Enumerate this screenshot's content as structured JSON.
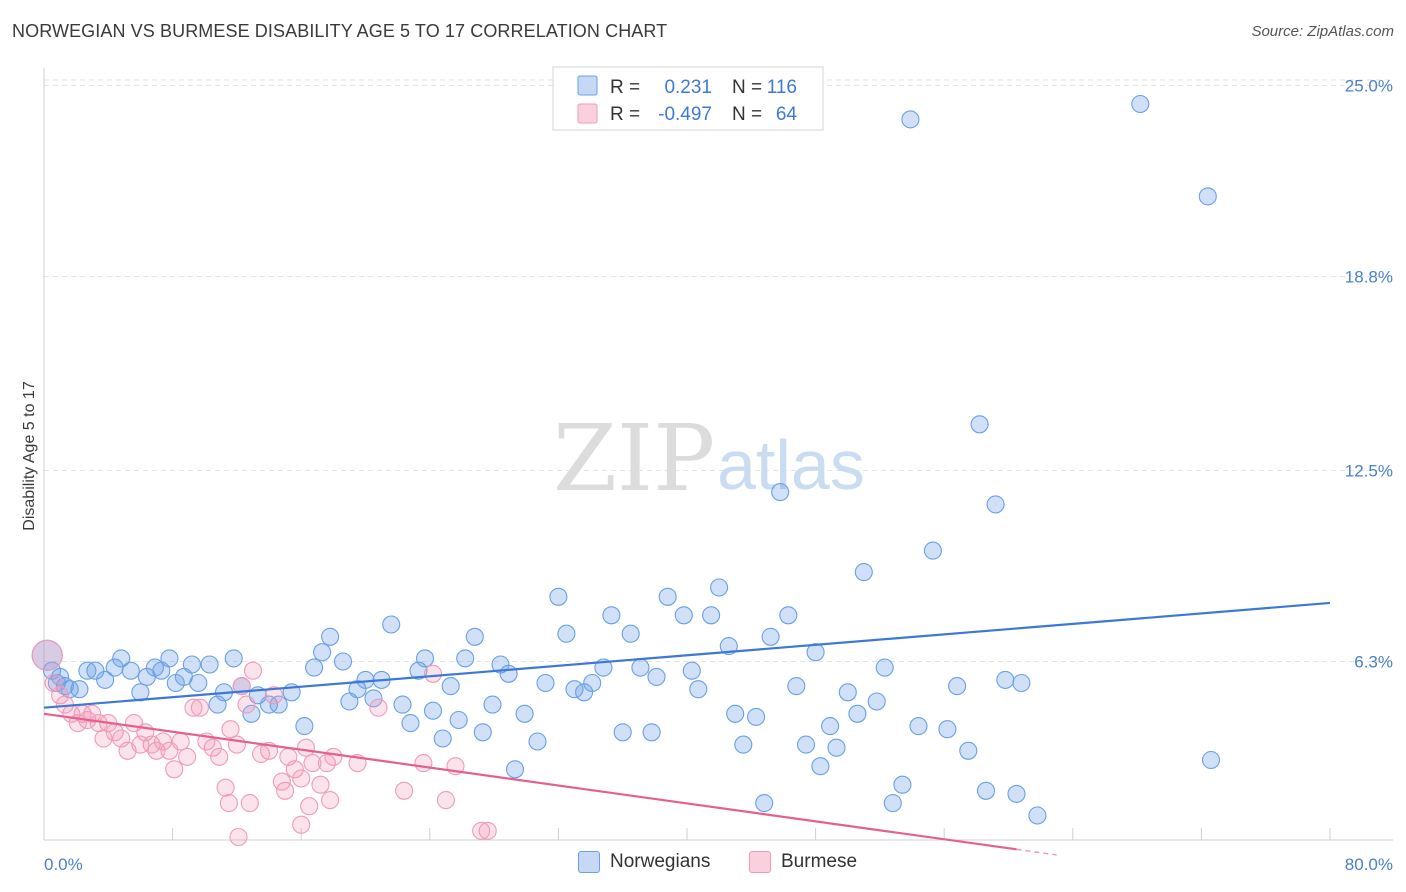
{
  "title": "NORWEGIAN VS BURMESE DISABILITY AGE 5 TO 17 CORRELATION CHART",
  "source": "Source: ZipAtlas.com",
  "watermark": {
    "part1": "ZIP",
    "part2": "atlas"
  },
  "chart_data": {
    "type": "scatter",
    "title": "NORWEGIAN VS BURMESE DISABILITY AGE 5 TO 17 CORRELATION CHART",
    "xlabel": "",
    "ylabel": "Disability Age 5 to 17",
    "xlim": [
      0,
      80
    ],
    "ylim": [
      0,
      26
    ],
    "x_tick_labels": [
      "0.0%",
      "80.0%"
    ],
    "y_ticks": [
      6.3,
      12.5,
      18.8,
      25.0
    ],
    "y_tick_labels": [
      "6.3%",
      "12.5%",
      "18.8%",
      "25.0%"
    ],
    "grid": true,
    "legend_position": "top-center",
    "stats_legend": [
      {
        "r_label": "R =",
        "r_value": "0.231",
        "n_label": "N =",
        "n_value": "116"
      },
      {
        "r_label": "R =",
        "r_value": "-0.497",
        "n_label": "N =",
        "n_value": "64"
      }
    ],
    "series": [
      {
        "name": "Norwegians",
        "color": "#6aa0e6",
        "line_color": "#3b78d8",
        "trendline": {
          "x0": 0,
          "y0": 4.8,
          "x1": 80,
          "y1": 8.2
        },
        "points": [
          [
            0.2,
            6.5
          ],
          [
            0.5,
            6.0
          ],
          [
            0.8,
            5.6
          ],
          [
            1.0,
            5.8
          ],
          [
            1.3,
            5.5
          ],
          [
            1.6,
            5.4
          ],
          [
            2.2,
            5.4
          ],
          [
            2.7,
            6.0
          ],
          [
            3.2,
            6.0
          ],
          [
            3.8,
            5.7
          ],
          [
            4.4,
            6.1
          ],
          [
            4.8,
            6.4
          ],
          [
            5.4,
            6.0
          ],
          [
            6.0,
            5.3
          ],
          [
            6.4,
            5.8
          ],
          [
            6.9,
            6.1
          ],
          [
            7.3,
            6.0
          ],
          [
            7.8,
            6.4
          ],
          [
            8.2,
            5.6
          ],
          [
            8.7,
            5.8
          ],
          [
            9.2,
            6.2
          ],
          [
            9.6,
            5.6
          ],
          [
            10.3,
            6.2
          ],
          [
            10.8,
            4.9
          ],
          [
            11.2,
            5.3
          ],
          [
            11.8,
            6.4
          ],
          [
            12.3,
            5.5
          ],
          [
            12.9,
            4.6
          ],
          [
            13.3,
            5.2
          ],
          [
            14.0,
            4.9
          ],
          [
            14.6,
            4.9
          ],
          [
            15.4,
            5.3
          ],
          [
            16.2,
            4.2
          ],
          [
            16.8,
            6.1
          ],
          [
            17.3,
            6.6
          ],
          [
            17.8,
            7.1
          ],
          [
            18.6,
            6.3
          ],
          [
            19.0,
            5.0
          ],
          [
            19.5,
            5.4
          ],
          [
            20.0,
            5.7
          ],
          [
            20.5,
            5.1
          ],
          [
            21.0,
            5.7
          ],
          [
            21.6,
            7.5
          ],
          [
            22.3,
            4.9
          ],
          [
            22.8,
            4.3
          ],
          [
            23.3,
            6.0
          ],
          [
            23.7,
            6.4
          ],
          [
            24.2,
            4.7
          ],
          [
            24.8,
            3.8
          ],
          [
            25.3,
            5.5
          ],
          [
            25.8,
            4.4
          ],
          [
            26.2,
            6.4
          ],
          [
            26.8,
            7.1
          ],
          [
            27.3,
            4.0
          ],
          [
            27.9,
            4.9
          ],
          [
            28.4,
            6.2
          ],
          [
            28.9,
            5.9
          ],
          [
            29.3,
            2.8
          ],
          [
            29.9,
            4.6
          ],
          [
            30.7,
            3.7
          ],
          [
            31.2,
            5.6
          ],
          [
            32.0,
            8.4
          ],
          [
            32.5,
            7.2
          ],
          [
            33.0,
            5.4
          ],
          [
            33.6,
            5.3
          ],
          [
            34.1,
            5.6
          ],
          [
            34.8,
            6.1
          ],
          [
            35.3,
            7.8
          ],
          [
            36.0,
            4.0
          ],
          [
            36.5,
            7.2
          ],
          [
            37.1,
            6.1
          ],
          [
            37.8,
            4.0
          ],
          [
            38.1,
            5.8
          ],
          [
            38.8,
            8.4
          ],
          [
            39.8,
            7.8
          ],
          [
            40.3,
            6.0
          ],
          [
            40.7,
            5.4
          ],
          [
            41.5,
            7.8
          ],
          [
            42.0,
            8.7
          ],
          [
            42.6,
            6.8
          ],
          [
            43.0,
            4.6
          ],
          [
            43.5,
            3.6
          ],
          [
            44.3,
            4.5
          ],
          [
            44.8,
            1.7
          ],
          [
            45.2,
            7.1
          ],
          [
            45.8,
            11.8
          ],
          [
            46.3,
            7.8
          ],
          [
            46.8,
            5.5
          ],
          [
            47.4,
            3.6
          ],
          [
            48.0,
            6.6
          ],
          [
            48.3,
            2.9
          ],
          [
            48.9,
            4.2
          ],
          [
            49.3,
            3.5
          ],
          [
            50.0,
            5.3
          ],
          [
            50.6,
            4.6
          ],
          [
            51.0,
            9.2
          ],
          [
            51.8,
            5.0
          ],
          [
            52.3,
            6.1
          ],
          [
            52.8,
            1.7
          ],
          [
            53.4,
            2.3
          ],
          [
            53.9,
            23.9
          ],
          [
            54.4,
            4.2
          ],
          [
            55.3,
            9.9
          ],
          [
            56.2,
            4.1
          ],
          [
            56.8,
            5.5
          ],
          [
            57.5,
            3.4
          ],
          [
            58.2,
            14.0
          ],
          [
            58.6,
            2.1
          ],
          [
            59.2,
            11.4
          ],
          [
            59.8,
            5.7
          ],
          [
            60.5,
            2.0
          ],
          [
            61.8,
            1.3
          ],
          [
            68.2,
            24.4
          ],
          [
            72.4,
            21.4
          ],
          [
            72.6,
            3.1
          ],
          [
            60.8,
            5.6
          ]
        ]
      },
      {
        "name": "Burmese",
        "color": "#f19ab6",
        "line_color": "#e4608e",
        "trendline": {
          "x0": 0,
          "y0": 4.6,
          "x1": 60.5,
          "y1": 0.2
        },
        "points": [
          [
            0.2,
            6.5
          ],
          [
            0.6,
            5.6
          ],
          [
            1.0,
            5.2
          ],
          [
            1.3,
            4.9
          ],
          [
            1.7,
            4.6
          ],
          [
            2.1,
            4.3
          ],
          [
            2.4,
            4.6
          ],
          [
            2.7,
            4.4
          ],
          [
            3.0,
            4.6
          ],
          [
            3.4,
            4.3
          ],
          [
            3.7,
            3.8
          ],
          [
            4.0,
            4.3
          ],
          [
            4.4,
            4.0
          ],
          [
            4.8,
            3.8
          ],
          [
            5.2,
            3.4
          ],
          [
            5.6,
            4.3
          ],
          [
            6.0,
            3.6
          ],
          [
            6.3,
            4.0
          ],
          [
            6.7,
            3.6
          ],
          [
            7.0,
            3.4
          ],
          [
            7.4,
            3.7
          ],
          [
            7.8,
            3.4
          ],
          [
            8.1,
            2.8
          ],
          [
            8.5,
            3.7
          ],
          [
            8.9,
            3.2
          ],
          [
            9.3,
            4.8
          ],
          [
            9.7,
            4.8
          ],
          [
            10.1,
            3.7
          ],
          [
            10.5,
            3.5
          ],
          [
            10.9,
            3.2
          ],
          [
            11.3,
            2.2
          ],
          [
            11.6,
            4.1
          ],
          [
            12.0,
            3.6
          ],
          [
            12.3,
            5.5
          ],
          [
            12.6,
            4.9
          ],
          [
            13.0,
            6.0
          ],
          [
            13.5,
            3.3
          ],
          [
            14.0,
            3.4
          ],
          [
            14.3,
            5.2
          ],
          [
            14.8,
            2.4
          ],
          [
            15.2,
            3.2
          ],
          [
            15.6,
            2.8
          ],
          [
            16.0,
            2.5
          ],
          [
            16.3,
            3.5
          ],
          [
            16.7,
            3.0
          ],
          [
            17.2,
            2.3
          ],
          [
            17.6,
            3.0
          ],
          [
            18.0,
            3.2
          ],
          [
            11.5,
            1.7
          ],
          [
            12.8,
            1.7
          ],
          [
            15.0,
            2.1
          ],
          [
            16.5,
            1.6
          ],
          [
            17.8,
            1.8
          ],
          [
            19.5,
            3.0
          ],
          [
            20.8,
            4.8
          ],
          [
            22.4,
            2.1
          ],
          [
            23.6,
            3.0
          ],
          [
            24.2,
            5.9
          ],
          [
            25.0,
            1.8
          ],
          [
            25.6,
            2.9
          ],
          [
            27.2,
            0.8
          ],
          [
            27.6,
            0.8
          ],
          [
            16.0,
            1.0
          ],
          [
            12.1,
            0.6
          ]
        ]
      }
    ]
  },
  "bottom_legend": [
    {
      "label": "Norwegians",
      "fill": "#c5d9f6",
      "stroke": "#6aa0e6"
    },
    {
      "label": "Burmese",
      "fill": "#fbd0de",
      "stroke": "#f19ab6"
    }
  ]
}
